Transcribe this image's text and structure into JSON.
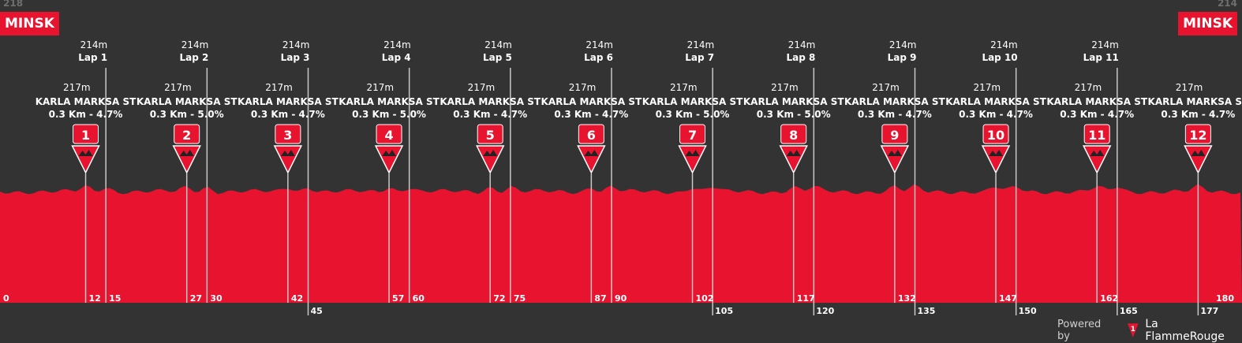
{
  "colors": {
    "background": "#333333",
    "profile_fill": "#e8132f",
    "line": "#c8c8c8",
    "text": "#ffffff",
    "muted": "#6e6e6e"
  },
  "start": {
    "city": "MINSK",
    "altitude": "218"
  },
  "finish": {
    "city": "MINSK",
    "altitude": "214"
  },
  "chart_data": {
    "type": "area",
    "x_unit": "km",
    "xlim": [
      0,
      180
    ],
    "x_ticks": [
      {
        "km": 0,
        "label": "0"
      },
      {
        "km": 12,
        "label": "12"
      },
      {
        "km": 15,
        "label": "15"
      },
      {
        "km": 27,
        "label": "27"
      },
      {
        "km": 30,
        "label": "30"
      },
      {
        "km": 42,
        "label": "42"
      },
      {
        "km": 45,
        "label": "45"
      },
      {
        "km": 57,
        "label": "57"
      },
      {
        "km": 60,
        "label": "60"
      },
      {
        "km": 72,
        "label": "72"
      },
      {
        "km": 75,
        "label": "75"
      },
      {
        "km": 87,
        "label": "87"
      },
      {
        "km": 90,
        "label": "90"
      },
      {
        "km": 102,
        "label": "102"
      },
      {
        "km": 105,
        "label": "105"
      },
      {
        "km": 117,
        "label": "117"
      },
      {
        "km": 120,
        "label": "120"
      },
      {
        "km": 132,
        "label": "132"
      },
      {
        "km": 135,
        "label": "135"
      },
      {
        "km": 147,
        "label": "147"
      },
      {
        "km": 150,
        "label": "150"
      },
      {
        "km": 162,
        "label": "162"
      },
      {
        "km": 165,
        "label": "165"
      },
      {
        "km": 177,
        "label": "177"
      },
      {
        "km": 180,
        "label": "180"
      }
    ],
    "laps": [
      {
        "km": 15,
        "altitude": "214m",
        "label": "Lap 1"
      },
      {
        "km": 30,
        "altitude": "214m",
        "label": "Lap 2"
      },
      {
        "km": 45,
        "altitude": "214m",
        "label": "Lap 3"
      },
      {
        "km": 60,
        "altitude": "214m",
        "label": "Lap 4"
      },
      {
        "km": 75,
        "altitude": "214m",
        "label": "Lap 5"
      },
      {
        "km": 90,
        "altitude": "214m",
        "label": "Lap 6"
      },
      {
        "km": 105,
        "altitude": "214m",
        "label": "Lap 7"
      },
      {
        "km": 120,
        "altitude": "214m",
        "label": "Lap 8"
      },
      {
        "km": 135,
        "altitude": "214m",
        "label": "Lap 9"
      },
      {
        "km": 150,
        "altitude": "214m",
        "label": "Lap 10"
      },
      {
        "km": 165,
        "altitude": "214m",
        "label": "Lap 11"
      }
    ],
    "climbs": [
      {
        "km": 12,
        "number": "1",
        "altitude": "217m",
        "name": "KARLA MARKSA ST",
        "detail": "0.3 Km - 4.7%"
      },
      {
        "km": 27,
        "number": "2",
        "altitude": "217m",
        "name": "KARLA MARKSA ST",
        "detail": "0.3 Km - 5.0%"
      },
      {
        "km": 42,
        "number": "3",
        "altitude": "217m",
        "name": "KARLA MARKSA ST",
        "detail": "0.3 Km - 4.7%"
      },
      {
        "km": 57,
        "number": "4",
        "altitude": "217m",
        "name": "KARLA MARKSA ST",
        "detail": "0.3 Km - 5.0%"
      },
      {
        "km": 72,
        "number": "5",
        "altitude": "217m",
        "name": "KARLA MARKSA ST",
        "detail": "0.3 Km - 4.7%"
      },
      {
        "km": 87,
        "number": "6",
        "altitude": "217m",
        "name": "KARLA MARKSA ST",
        "detail": "0.3 Km - 4.7%"
      },
      {
        "km": 102,
        "number": "7",
        "altitude": "217m",
        "name": "KARLA MARKSA ST",
        "detail": "0.3 Km - 5.0%"
      },
      {
        "km": 117,
        "number": "8",
        "altitude": "217m",
        "name": "KARLA MARKSA ST",
        "detail": "0.3 Km - 5.0%"
      },
      {
        "km": 132,
        "number": "9",
        "altitude": "217m",
        "name": "KARLA MARKSA ST",
        "detail": "0.3 Km - 4.7%"
      },
      {
        "km": 147,
        "number": "10",
        "altitude": "217m",
        "name": "KARLA MARKSA ST",
        "detail": "0.3 Km - 4.7%"
      },
      {
        "km": 162,
        "number": "11",
        "altitude": "217m",
        "name": "KARLA MARKSA ST",
        "detail": "0.3 Km - 4.7%"
      },
      {
        "km": 177,
        "number": "12",
        "altitude": "217m",
        "name": "KARLA MARKSA ST",
        "detail": "0.3 Km - 4.7%"
      }
    ]
  },
  "footer": {
    "powered_by": "Powered by",
    "logo_number": "1",
    "brand": "La FlammeRouge"
  }
}
